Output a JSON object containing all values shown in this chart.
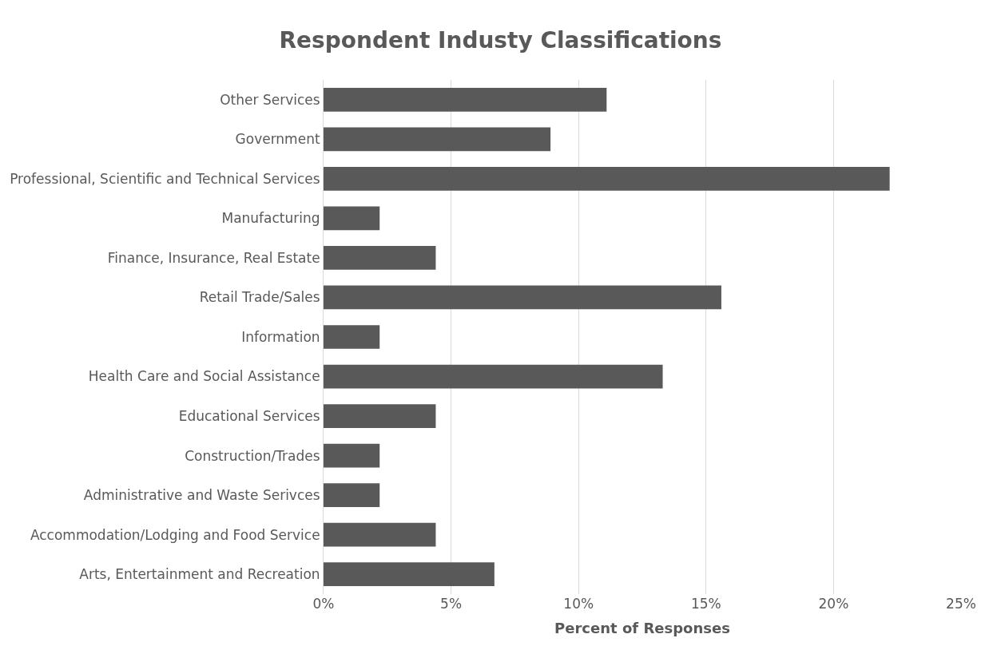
{
  "chart_data": {
    "type": "bar",
    "orientation": "horizontal",
    "title": "Respondent Industy Classifications",
    "xlabel": "Percent of Responses",
    "categories": [
      "Other Services",
      "Government",
      "Professional, Scientific and Technical Services",
      "Manufacturing",
      "Finance, Insurance, Real Estate",
      "Retail Trade/Sales",
      "Information",
      "Health Care and Social Assistance",
      "Educational Services",
      "Construction/Trades",
      "Administrative and Waste Serivces",
      "Accommodation/Lodging and Food Service",
      "Arts, Entertainment and Recreation"
    ],
    "values": [
      11.1,
      8.9,
      22.2,
      2.2,
      4.4,
      15.6,
      2.2,
      13.3,
      4.4,
      2.2,
      2.2,
      4.4,
      6.7
    ],
    "color": "#595959",
    "xlim": [
      0,
      25
    ],
    "xticks": [
      {
        "value": 0,
        "label": "0%"
      },
      {
        "value": 5,
        "label": "5%"
      },
      {
        "value": 10,
        "label": "10%"
      },
      {
        "value": 15,
        "label": "15%"
      },
      {
        "value": 20,
        "label": "20%"
      },
      {
        "value": 25,
        "label": "25%"
      }
    ],
    "grid": "x"
  }
}
